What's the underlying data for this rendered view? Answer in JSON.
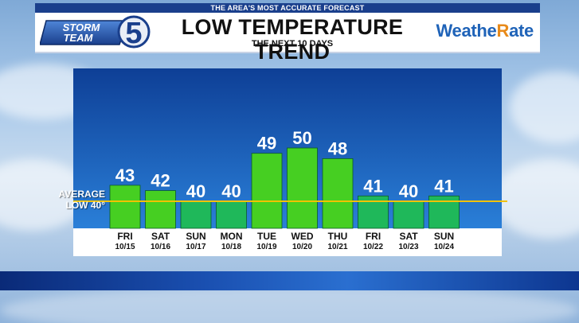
{
  "header": {
    "tagline": "THE AREA'S MOST ACCURATE FORECAST",
    "logo_line1": "STORM",
    "logo_line2": "TEAM",
    "logo_number": "5",
    "brand_main": "Weathe",
    "brand_accent": "R",
    "brand_tail": "ate"
  },
  "colors": {
    "panel_top": "#0e3f96",
    "panel_bottom": "#2a7fd8",
    "bar_high": "#46cf22",
    "bar_low": "#1fb85a",
    "average_line": "#f2c200"
  },
  "chart_data": {
    "type": "bar",
    "title": "LOW TEMPERATURE TREND",
    "subtitle": "THE NEXT 10 DAYS",
    "categories": [
      "FRI",
      "SAT",
      "SUN",
      "MON",
      "TUE",
      "WED",
      "THU",
      "FRI",
      "SAT",
      "SUN"
    ],
    "dates": [
      "10/15",
      "10/16",
      "10/17",
      "10/18",
      "10/19",
      "10/20",
      "10/21",
      "10/22",
      "10/23",
      "10/24"
    ],
    "values": [
      43,
      42,
      40,
      40,
      49,
      50,
      48,
      41,
      40,
      41
    ],
    "average": {
      "label_line1": "AVERAGE",
      "label_line2": "LOW 40°",
      "value": 40
    }
  }
}
